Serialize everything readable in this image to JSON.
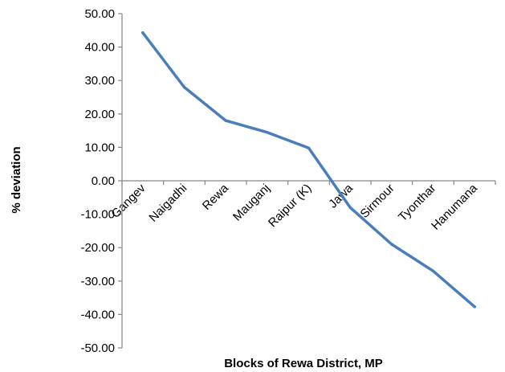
{
  "chart_data": {
    "type": "line",
    "title": "",
    "xlabel": "Blocks of Rewa District, MP",
    "ylabel": "% deviation",
    "ylim": [
      -50,
      50
    ],
    "ytick_step": 10,
    "grid": false,
    "legend": "none",
    "categories": [
      "Gangev",
      "Naigadhi",
      "Rewa",
      "Mauganj",
      "Raipur (K)",
      "Jawa",
      "Sirmour",
      "Tyonthar",
      "Hanumana"
    ],
    "series": [
      {
        "values": [
          44.3,
          28.0,
          18.0,
          14.5,
          9.8,
          -8.0,
          -19.0,
          -27.0,
          -37.7
        ],
        "color": "#4a7ebb"
      }
    ]
  }
}
